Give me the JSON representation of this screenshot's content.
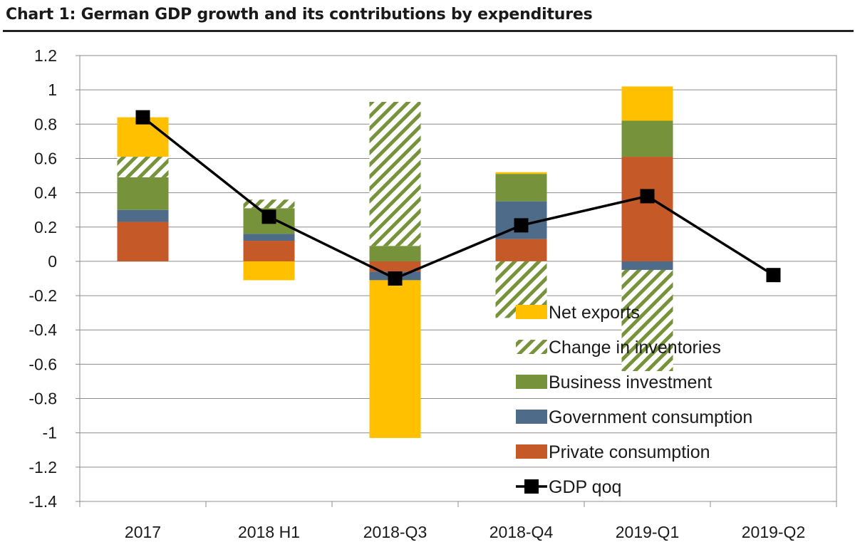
{
  "title": "Chart 1: German GDP growth and its contributions by expenditures",
  "chart_data": {
    "type": "bar",
    "stacked": true,
    "categories": [
      "2017",
      "2018 H1",
      "2018-Q3",
      "2018-Q4",
      "2019-Q1",
      "2019-Q2"
    ],
    "ylim": [
      -1.4,
      1.2
    ],
    "yticks": [
      "1.2",
      "1",
      "0.8",
      "0.6",
      "0.4",
      "0.2",
      "0",
      "-0.2",
      "-0.4",
      "-0.6",
      "-0.8",
      "-1",
      "-1.2",
      "-1.4"
    ],
    "grid": true,
    "legend_position": "bottom-right",
    "series": [
      {
        "name": "Private consumption",
        "color": "#C55A28",
        "pattern": "solid",
        "values": [
          0.23,
          0.12,
          -0.06,
          0.13,
          0.61,
          null
        ]
      },
      {
        "name": "Government consumption",
        "color": "#4F6B8A",
        "pattern": "solid",
        "values": [
          0.07,
          0.04,
          -0.05,
          0.22,
          -0.05,
          null
        ]
      },
      {
        "name": "Business investment",
        "color": "#76933C",
        "pattern": "solid",
        "values": [
          0.19,
          0.15,
          0.09,
          0.16,
          0.21,
          null
        ]
      },
      {
        "name": "Change in inventories",
        "color": "#76933C",
        "pattern": "hatch",
        "values": [
          0.12,
          0.05,
          0.84,
          -0.33,
          -0.59,
          null
        ]
      },
      {
        "name": "Net exports",
        "color": "#FFC000",
        "pattern": "solid",
        "values": [
          0.23,
          -0.11,
          -0.92,
          0.01,
          0.2,
          null
        ]
      }
    ],
    "line": {
      "name": "GDP qoq",
      "color": "#000000",
      "values": [
        0.84,
        0.26,
        -0.1,
        0.21,
        0.38,
        -0.08
      ]
    },
    "legend_order": [
      "Net exports",
      "Change in inventories",
      "Business investment",
      "Government consumption",
      "Private consumption",
      "GDP qoq"
    ]
  }
}
